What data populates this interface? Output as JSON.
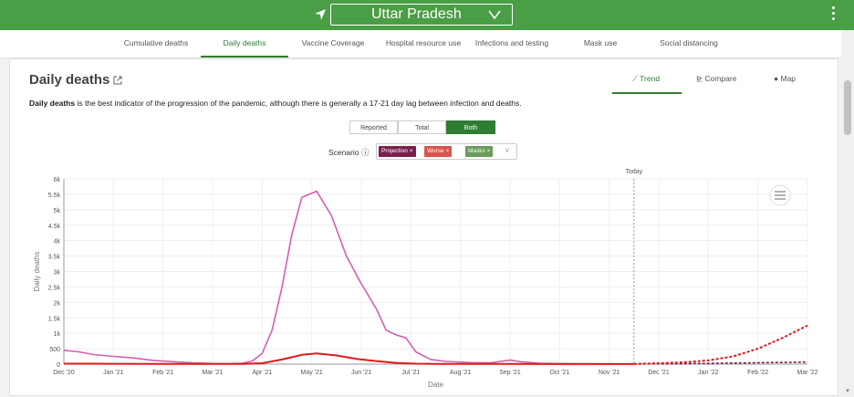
{
  "header": {
    "state": "Uttar Pradesh",
    "icons": [
      "location-arrow-icon",
      "chevron-down-icon",
      "kebab-menu-icon"
    ]
  },
  "nav": {
    "tabs": [
      "Cumulative deaths",
      "Daily deaths",
      "Vaccine Coverage",
      "Hospital resource use",
      "Infections and testing",
      "Mask use",
      "Social distancing"
    ],
    "active": "Daily deaths"
  },
  "card": {
    "title": "Daily deaths",
    "view_tabs": {
      "trend": "Trend",
      "compare": "Compare",
      "map": "Map"
    },
    "description_bold": "Daily deaths",
    "description_rest": " is the best indicator of the progression of the pandemic, although there is generally a 17-21 day lag between infection and deaths.",
    "toggle": {
      "reported": "Reported",
      "total": "Total",
      "both": "Both",
      "selected": "Both"
    },
    "scenario_label": "Scenario",
    "chips": [
      {
        "label": "Projection",
        "color": "#7b1f4e"
      },
      {
        "label": "Worse",
        "color": "#d9534f"
      },
      {
        "label": "Masks",
        "color": "#6a9b5a"
      }
    ]
  },
  "colors": {
    "accent": "#4a9e45",
    "total": "#d65db1",
    "reported": "#e0191b",
    "worse": "#e0191b"
  },
  "chart_data": {
    "type": "line",
    "xlabel": "Date",
    "ylabel": "Daily deaths",
    "ylim": [
      0,
      6000
    ],
    "y_ticks": [
      "0",
      "500",
      "1k",
      "1.5k",
      "2k",
      "2.5k",
      "3k",
      "3.5k",
      "4k",
      "4.5k",
      "5k",
      "5.5k",
      "6k"
    ],
    "x_ticks": [
      "Dec '20",
      "Jan '21",
      "Feb '21",
      "Mar '21",
      "Apr '21",
      "May '21",
      "Jun '21",
      "Jul '21",
      "Aug '21",
      "Sep '21",
      "Oct '21",
      "Nov '21",
      "Dec '21",
      "Jan '22",
      "Feb '22",
      "Mar '22"
    ],
    "today_label": "Today",
    "today_x": 11.5,
    "grid": true,
    "series": [
      {
        "key": "total",
        "style": "solid",
        "points": [
          [
            0,
            450
          ],
          [
            0.3,
            400
          ],
          [
            0.6,
            310
          ],
          [
            1,
            250
          ],
          [
            1.4,
            200
          ],
          [
            1.8,
            120
          ],
          [
            2.2,
            80
          ],
          [
            2.6,
            40
          ],
          [
            3,
            20
          ],
          [
            3.3,
            15
          ],
          [
            3.6,
            30
          ],
          [
            3.8,
            100
          ],
          [
            4,
            350
          ],
          [
            4.2,
            1100
          ],
          [
            4.4,
            2500
          ],
          [
            4.6,
            4200
          ],
          [
            4.8,
            5400
          ],
          [
            5.1,
            5600
          ],
          [
            5.4,
            4800
          ],
          [
            5.7,
            3500
          ],
          [
            6,
            2600
          ],
          [
            6.3,
            1800
          ],
          [
            6.5,
            1100
          ],
          [
            6.7,
            950
          ],
          [
            6.9,
            850
          ],
          [
            7.1,
            400
          ],
          [
            7.4,
            150
          ],
          [
            7.7,
            90
          ],
          [
            8.2,
            50
          ],
          [
            8.6,
            40
          ],
          [
            9,
            130
          ],
          [
            9.2,
            80
          ],
          [
            9.6,
            30
          ],
          [
            10.2,
            15
          ],
          [
            11,
            10
          ],
          [
            11.5,
            8
          ]
        ]
      },
      {
        "key": "reported",
        "style": "solid",
        "points": [
          [
            0,
            15
          ],
          [
            0.5,
            15
          ],
          [
            1,
            12
          ],
          [
            2,
            8
          ],
          [
            3,
            5
          ],
          [
            3.6,
            10
          ],
          [
            4,
            30
          ],
          [
            4.4,
            150
          ],
          [
            4.8,
            300
          ],
          [
            5.1,
            350
          ],
          [
            5.5,
            280
          ],
          [
            5.9,
            170
          ],
          [
            6.3,
            100
          ],
          [
            6.7,
            40
          ],
          [
            7.1,
            15
          ],
          [
            7.6,
            8
          ],
          [
            8,
            5
          ],
          [
            9,
            8
          ],
          [
            10,
            3
          ],
          [
            11.5,
            2
          ]
        ]
      },
      {
        "key": "projection",
        "style": "dotted",
        "points": [
          [
            11.5,
            5
          ],
          [
            12,
            10
          ],
          [
            12.5,
            15
          ],
          [
            13,
            25
          ],
          [
            13.5,
            35
          ],
          [
            14,
            45
          ],
          [
            14.5,
            55
          ],
          [
            15,
            65
          ]
        ]
      },
      {
        "key": "worse",
        "style": "dotted",
        "points": [
          [
            11.5,
            10
          ],
          [
            12,
            30
          ],
          [
            12.5,
            60
          ],
          [
            13,
            120
          ],
          [
            13.5,
            250
          ],
          [
            14,
            500
          ],
          [
            14.5,
            850
          ],
          [
            15,
            1250
          ]
        ]
      }
    ]
  }
}
